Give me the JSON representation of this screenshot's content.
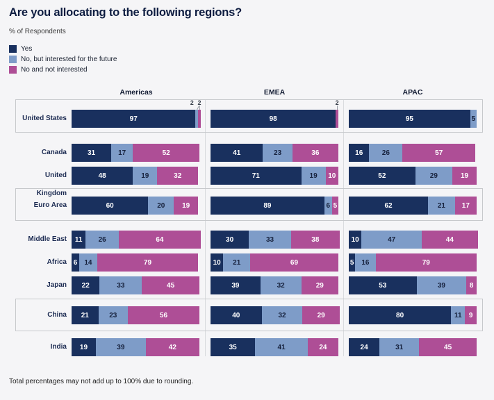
{
  "title": "Are you allocating to the following regions?",
  "subtitle": "% of Respondents",
  "footer": "Total percentages may not add up to 100% due to rounding.",
  "legend": [
    {
      "label": "Yes",
      "color": "#19305e"
    },
    {
      "label": "No, but interested for the future",
      "color": "#7e9cc8"
    },
    {
      "label": "No and not interested",
      "color": "#ae4e96"
    }
  ],
  "chart_data": {
    "type": "bar",
    "orientation": "horizontal",
    "stacked": true,
    "value_unit": "% of respondents",
    "columns": [
      "Americas",
      "EMEA",
      "APAC"
    ],
    "series": [
      "Yes",
      "No, but interested for the future",
      "No and not interested"
    ],
    "series_colors": [
      "#19305e",
      "#7e9cc8",
      "#ae4e96"
    ],
    "xlim": [
      0,
      100
    ],
    "rows": [
      {
        "label": "United States",
        "highlighted": true,
        "values": {
          "Americas": [
            97,
            2,
            2
          ],
          "EMEA": [
            98,
            0,
            2
          ],
          "APAC": [
            95,
            5,
            0
          ]
        }
      },
      {
        "label": "Canada",
        "highlighted": false,
        "values": {
          "Americas": [
            31,
            17,
            52
          ],
          "EMEA": [
            41,
            23,
            36
          ],
          "APAC": [
            16,
            26,
            57
          ]
        }
      },
      {
        "label": "United Kingdom",
        "highlighted": false,
        "values": {
          "Americas": [
            48,
            19,
            32
          ],
          "EMEA": [
            71,
            19,
            10
          ],
          "APAC": [
            52,
            29,
            19
          ]
        }
      },
      {
        "label": "Euro Area",
        "highlighted": true,
        "values": {
          "Americas": [
            60,
            20,
            19
          ],
          "EMEA": [
            89,
            6,
            5
          ],
          "APAC": [
            62,
            21,
            17
          ]
        }
      },
      {
        "label": "Middle East",
        "highlighted": false,
        "values": {
          "Americas": [
            11,
            26,
            64
          ],
          "EMEA": [
            30,
            33,
            38
          ],
          "APAC": [
            10,
            47,
            44
          ]
        }
      },
      {
        "label": "Africa",
        "highlighted": false,
        "values": {
          "Americas": [
            6,
            14,
            79
          ],
          "EMEA": [
            10,
            21,
            69
          ],
          "APAC": [
            5,
            16,
            79
          ]
        }
      },
      {
        "label": "Japan",
        "highlighted": false,
        "values": {
          "Americas": [
            22,
            33,
            45
          ],
          "EMEA": [
            39,
            32,
            29
          ],
          "APAC": [
            53,
            39,
            8
          ]
        }
      },
      {
        "label": "China",
        "highlighted": true,
        "values": {
          "Americas": [
            21,
            23,
            56
          ],
          "EMEA": [
            40,
            32,
            29
          ],
          "APAC": [
            80,
            11,
            9
          ]
        }
      },
      {
        "label": "India",
        "highlighted": false,
        "values": {
          "Americas": [
            19,
            39,
            42
          ],
          "EMEA": [
            35,
            41,
            24
          ],
          "APAC": [
            24,
            31,
            45
          ]
        }
      }
    ]
  }
}
